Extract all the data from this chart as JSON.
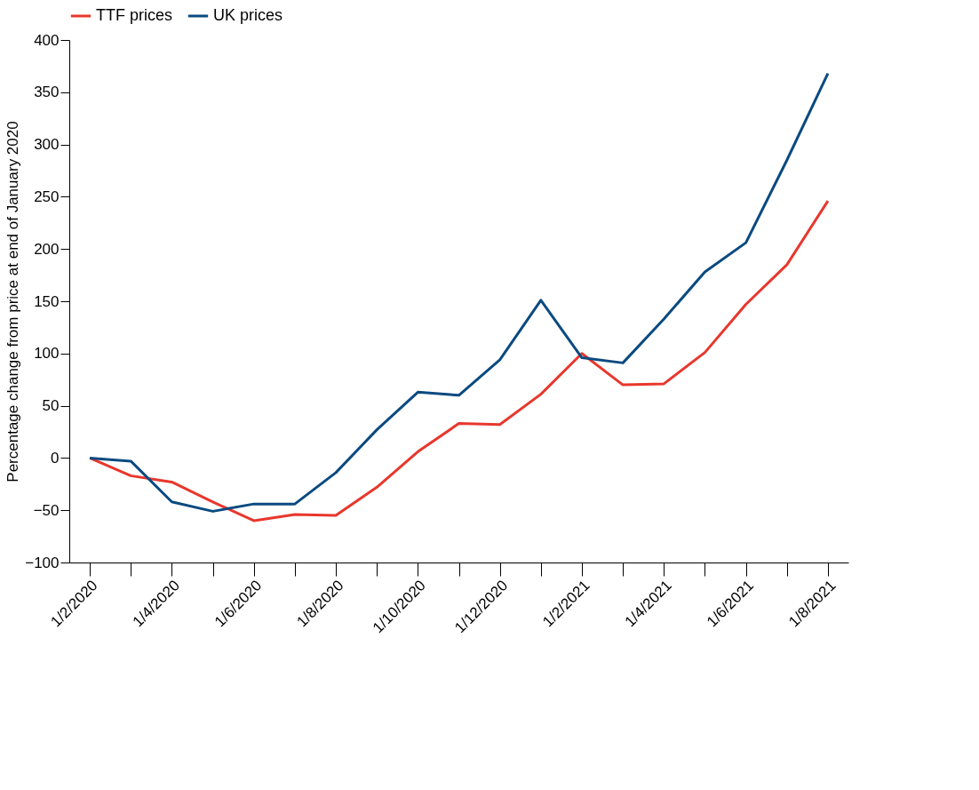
{
  "chart_data": {
    "type": "line",
    "ylabel": "Percentage change from price at end of January 2020",
    "categories": [
      "1/2/2020",
      null,
      "1/4/2020",
      null,
      "1/6/2020",
      null,
      "1/8/2020",
      null,
      "1/10/2020",
      null,
      "1/12/2020",
      null,
      "1/2/2021",
      null,
      "1/4/2021",
      null,
      "1/6/2021",
      null,
      "1/8/2021"
    ],
    "series": [
      {
        "name": "TTF prices",
        "color": "#e8372c",
        "values": [
          0,
          -17,
          -23,
          -42,
          -60,
          -54,
          -55,
          -28,
          6,
          33,
          32,
          61,
          100,
          70,
          71,
          101,
          147,
          185,
          246
        ]
      },
      {
        "name": "UK prices",
        "color": "#0a4a80",
        "values": [
          0,
          -3,
          -42,
          -51,
          -44,
          -44,
          -14,
          27,
          63,
          60,
          94,
          151,
          96,
          91,
          133,
          178,
          206,
          285,
          368
        ]
      }
    ],
    "ylim": [
      -100,
      400
    ],
    "yticks": [
      -100,
      -50,
      0,
      50,
      100,
      150,
      200,
      250,
      300,
      350,
      400
    ],
    "grid": false,
    "legend": "top",
    "marker": "none",
    "line_style": "solid"
  }
}
